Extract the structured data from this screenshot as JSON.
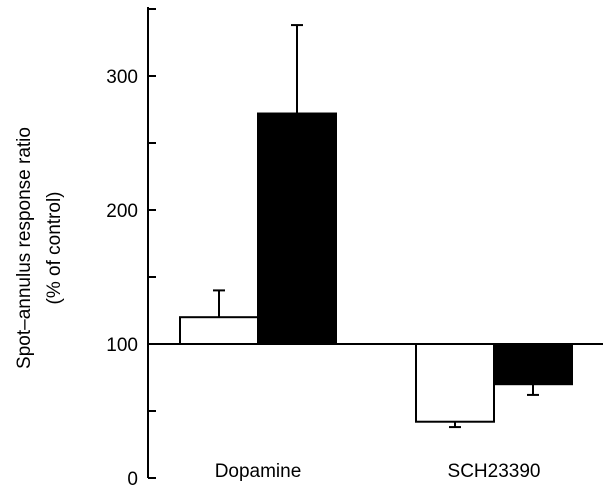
{
  "chart_data": {
    "type": "bar",
    "title": "",
    "xlabel": "",
    "ylabel_line1": "Spot–annulus response ratio",
    "ylabel_line2": "(% of control)",
    "categories": [
      "Dopamine",
      "SCH23390"
    ],
    "baseline": 100,
    "ylim": [
      0,
      350
    ],
    "yticks": [
      0,
      100,
      200,
      300
    ],
    "series": [
      {
        "fill": "#ffffff",
        "values": [
          120,
          42
        ],
        "errors": [
          20,
          4
        ]
      },
      {
        "fill": "#000000",
        "values": [
          272,
          70
        ],
        "errors": [
          66,
          8
        ]
      }
    ]
  }
}
